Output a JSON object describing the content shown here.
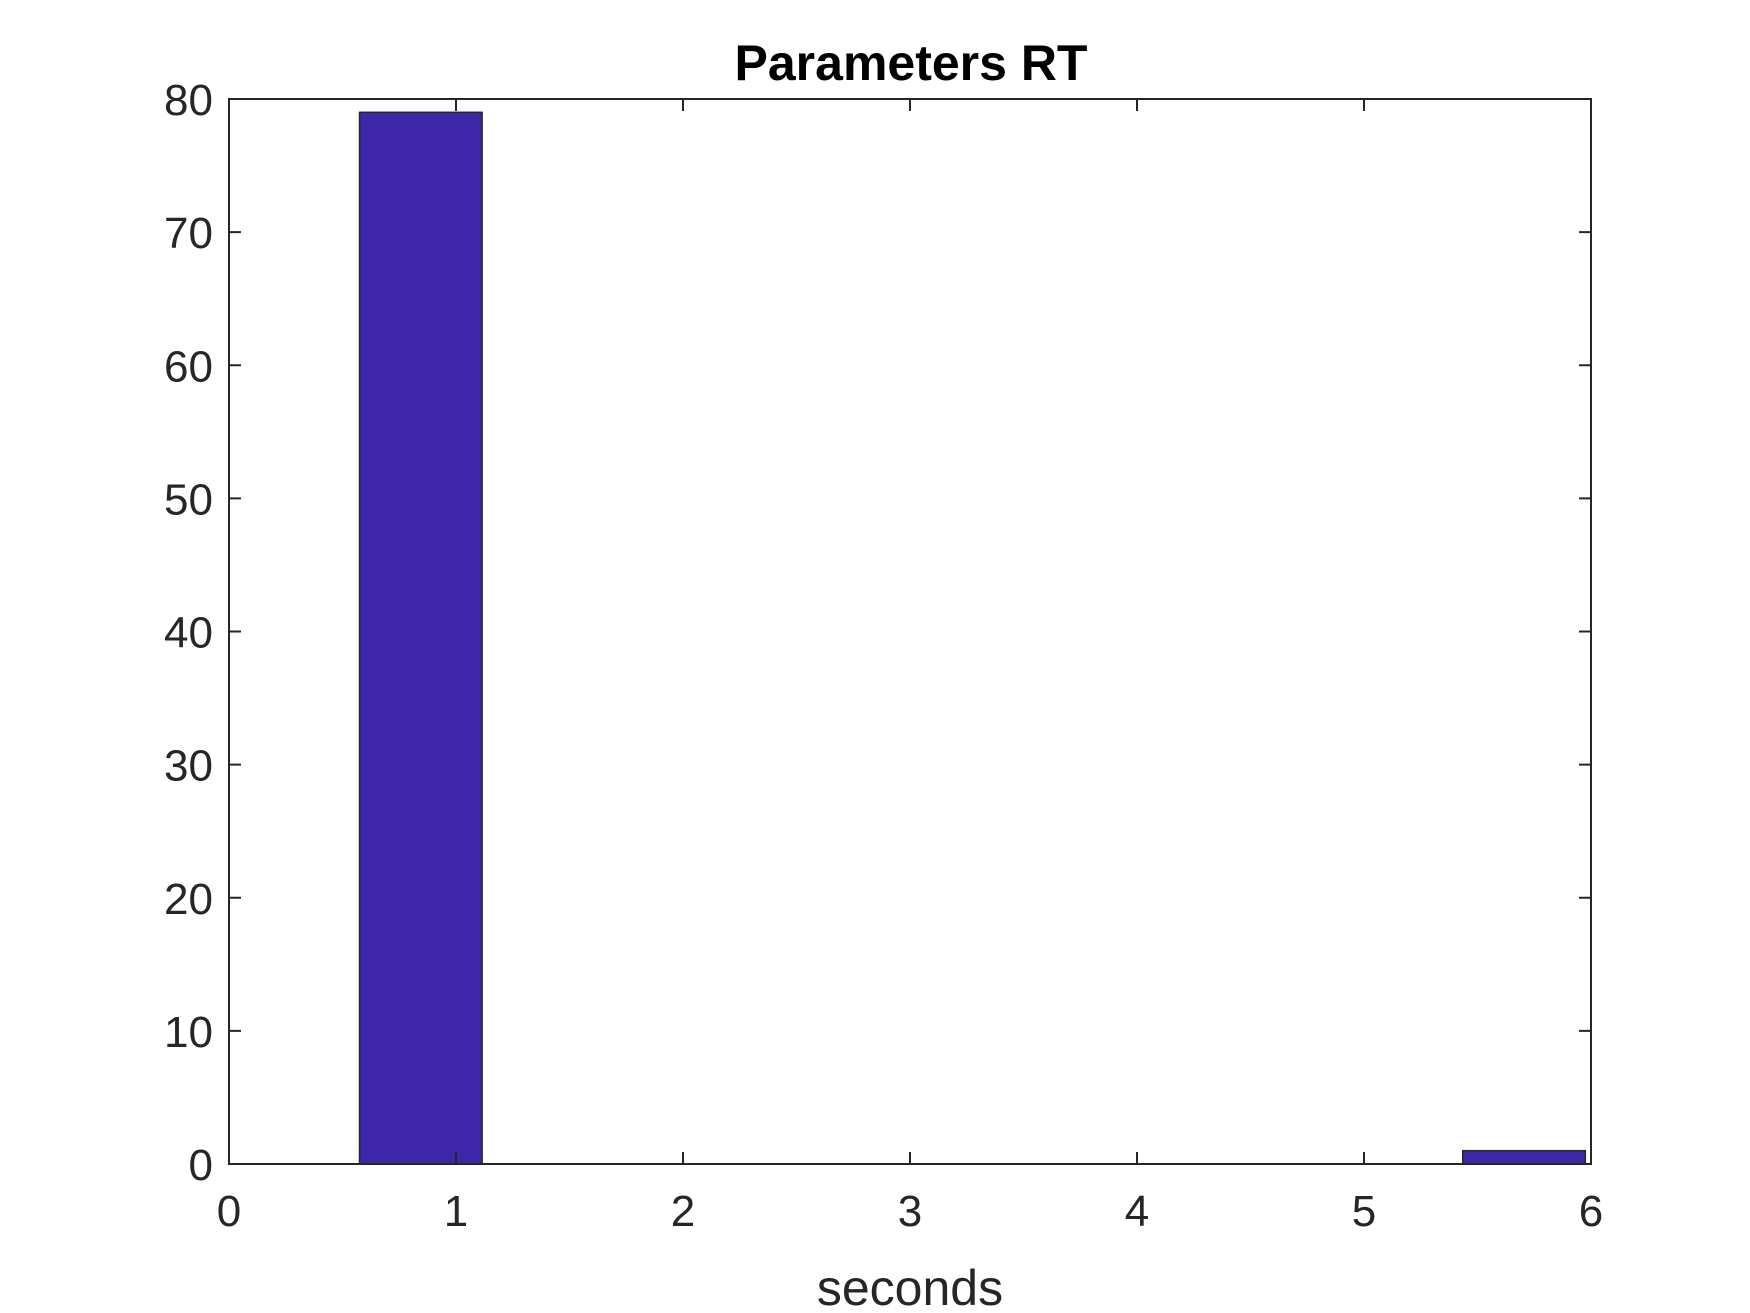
{
  "chart_data": {
    "type": "bar",
    "title": "Parameters RT",
    "xlabel": "seconds",
    "ylabel": "",
    "xlim": [
      0,
      6
    ],
    "ylim": [
      0,
      80
    ],
    "xticks": [
      "0",
      "1",
      "2",
      "3",
      "4",
      "5",
      "6"
    ],
    "yticks": [
      "0",
      "10",
      "20",
      "30",
      "40",
      "50",
      "60",
      "70",
      "80"
    ],
    "bins": [
      {
        "from": 0.575,
        "to": 1.115,
        "value": 79
      },
      {
        "from": 1.115,
        "to": 1.655,
        "value": 0
      },
      {
        "from": 1.655,
        "to": 2.195,
        "value": 0
      },
      {
        "from": 2.195,
        "to": 2.735,
        "value": 0
      },
      {
        "from": 2.735,
        "to": 3.275,
        "value": 0
      },
      {
        "from": 3.275,
        "to": 3.815,
        "value": 0
      },
      {
        "from": 3.815,
        "to": 4.355,
        "value": 0
      },
      {
        "from": 4.355,
        "to": 4.895,
        "value": 0
      },
      {
        "from": 4.895,
        "to": 5.435,
        "value": 0
      },
      {
        "from": 5.435,
        "to": 5.975,
        "value": 1
      }
    ],
    "bar_color": "#3d26a8",
    "grid": false,
    "legend": "none"
  }
}
